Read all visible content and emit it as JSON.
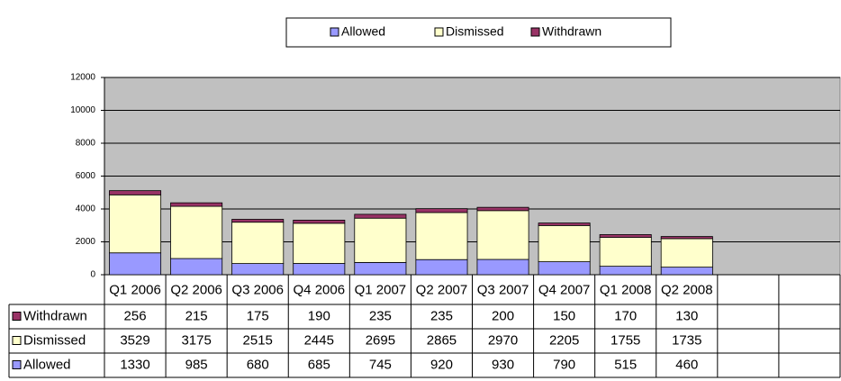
{
  "chart_data": {
    "type": "stacked_bar",
    "categories": [
      "Q1 2006",
      "Q2 2006",
      "Q3 2006",
      "Q4 2006",
      "Q1 2007",
      "Q2 2007",
      "Q3 2007",
      "Q4 2007",
      "Q1 2008",
      "Q2 2008",
      null,
      null
    ],
    "series": [
      {
        "name": "Allowed",
        "color": "#9999ff",
        "values": [
          1330,
          985,
          680,
          685,
          745,
          920,
          930,
          790,
          515,
          460,
          null,
          null
        ]
      },
      {
        "name": "Dismissed",
        "color": "#ffffcc",
        "values": [
          3529,
          3175,
          2515,
          2445,
          2695,
          2865,
          2970,
          2205,
          1755,
          1735,
          null,
          null
        ]
      },
      {
        "name": "Withdrawn",
        "color": "#993366",
        "values": [
          256,
          215,
          175,
          190,
          235,
          235,
          200,
          150,
          170,
          130,
          null,
          null
        ]
      }
    ],
    "ylim": [
      0,
      12000
    ],
    "yticks": [
      0,
      2000,
      4000,
      6000,
      8000,
      10000,
      12000
    ],
    "grid": true,
    "legend": "top",
    "data_table": true
  }
}
